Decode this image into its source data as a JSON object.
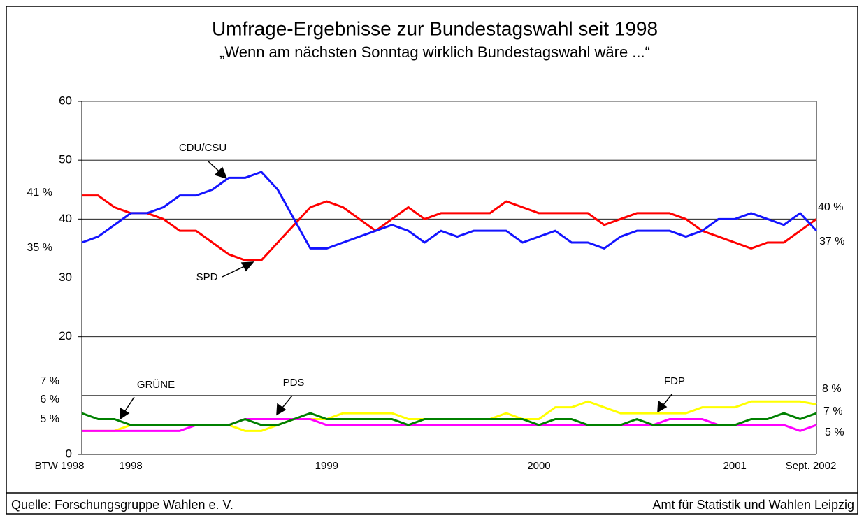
{
  "chart_data": {
    "type": "line",
    "title": "Umfrage-Ergebnisse zur Bundestagswahl seit 1998",
    "subtitle": "„Wenn am nächsten Sonntag wirklich Bundestagswahl wäre ...“",
    "categories": [
      "BTW 1998",
      null,
      null,
      "1998",
      null,
      null,
      null,
      null,
      null,
      null,
      null,
      null,
      null,
      null,
      null,
      "1999",
      null,
      null,
      null,
      null,
      null,
      null,
      null,
      null,
      null,
      null,
      null,
      null,
      "2000",
      null,
      null,
      null,
      null,
      null,
      null,
      null,
      null,
      null,
      null,
      null,
      "2001",
      null,
      null,
      null,
      null,
      "Sept. 2002"
    ],
    "series": [
      {
        "name": "CDU/CSU",
        "color": "#1414ff",
        "values": [
          36,
          37,
          39,
          41,
          41,
          42,
          44,
          44,
          45,
          47,
          47,
          48,
          45,
          40,
          35,
          35,
          36,
          37,
          38,
          39,
          38,
          36,
          38,
          37,
          38,
          38,
          38,
          36,
          37,
          38,
          36,
          36,
          35,
          37,
          38,
          38,
          38,
          37,
          38,
          40,
          40,
          41,
          40,
          39,
          41,
          38
        ]
      },
      {
        "name": "SPD",
        "color": "#ff0000",
        "values": [
          44,
          44,
          42,
          41,
          41,
          40,
          38,
          38,
          36,
          34,
          33,
          33,
          36,
          39,
          42,
          43,
          42,
          40,
          38,
          40,
          42,
          40,
          41,
          41,
          41,
          41,
          43,
          42,
          41,
          41,
          41,
          41,
          39,
          40,
          41,
          41,
          41,
          40,
          38,
          37,
          36,
          35,
          36,
          36,
          38,
          40
        ]
      },
      {
        "name": "FDP",
        "color": "#ffff00",
        "values": [
          4,
          4,
          4,
          5,
          5,
          5,
          5,
          5,
          5,
          5,
          4,
          4,
          5,
          6,
          6,
          6,
          7,
          7,
          7,
          7,
          6,
          6,
          6,
          6,
          6,
          6,
          7,
          6,
          6,
          8,
          8,
          9,
          8,
          7,
          7,
          7,
          7,
          7,
          8,
          8,
          8,
          9,
          9,
          9,
          9,
          8.5
        ]
      },
      {
        "name": "GRÜNE",
        "color": "#008000",
        "values": [
          7,
          6,
          6,
          5,
          5,
          5,
          5,
          5,
          5,
          5,
          6,
          5,
          5,
          6,
          7,
          6,
          6,
          6,
          6,
          6,
          5,
          6,
          6,
          6,
          6,
          6,
          6,
          6,
          5,
          6,
          6,
          5,
          5,
          5,
          6,
          5,
          5,
          5,
          5,
          5,
          5,
          6,
          6,
          7,
          6,
          7
        ]
      },
      {
        "name": "PDS",
        "color": "#ff00ff",
        "values": [
          4,
          4,
          4,
          4,
          4,
          4,
          4,
          5,
          5,
          5,
          6,
          6,
          6,
          6,
          6,
          5,
          5,
          5,
          5,
          5,
          5,
          5,
          5,
          5,
          5,
          5,
          5,
          5,
          5,
          5,
          5,
          5,
          5,
          5,
          5,
          5,
          6,
          6,
          6,
          5,
          5,
          5,
          5,
          5,
          4,
          5
        ]
      }
    ],
    "ylim": [
      0,
      60
    ],
    "yticks": [
      0,
      20,
      30,
      40,
      50,
      60
    ],
    "grid_lines": [
      10,
      20,
      30,
      40,
      50,
      60
    ],
    "grid": true,
    "annotations": [
      "41 %",
      "35 %",
      "7 %",
      "6 %",
      "5 %",
      "40 %",
      "37 %",
      "8 %",
      "7 %",
      "5 %"
    ],
    "source": "Quelle:   Forschungsgruppe Wahlen e. V.",
    "publisher": "Amt für Statistik und Wahlen Leipzig"
  }
}
